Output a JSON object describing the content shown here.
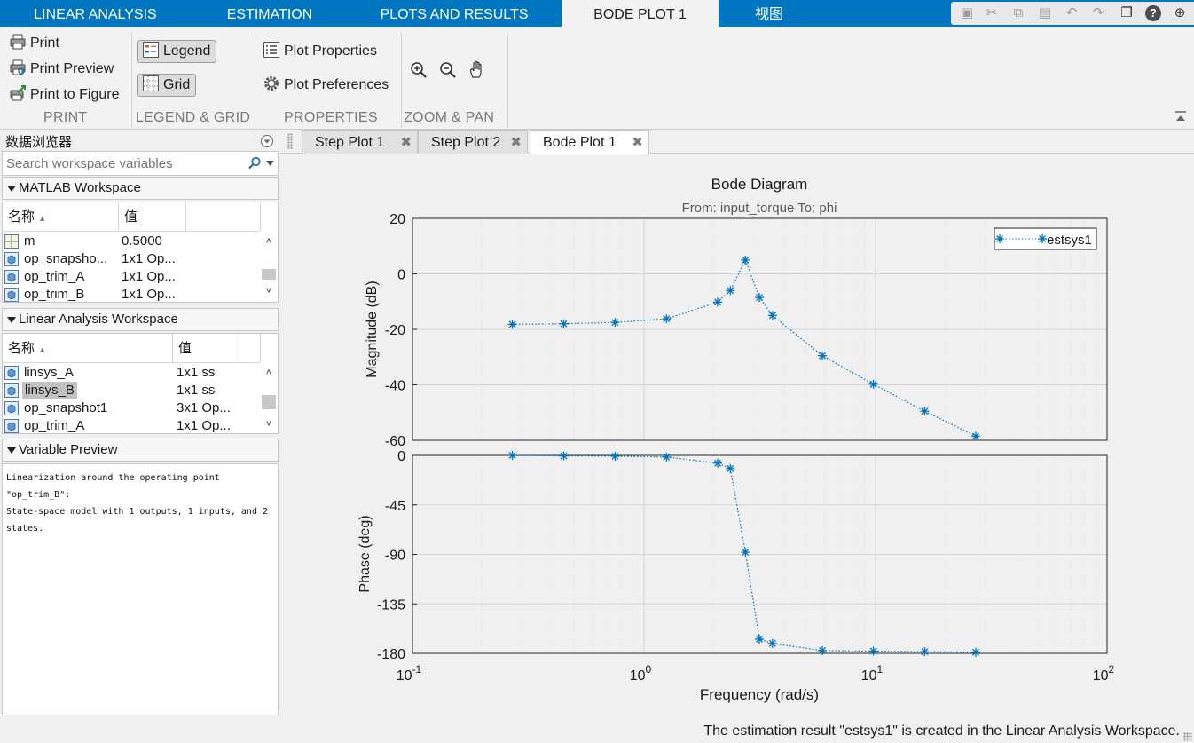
{
  "top_tabs": [
    "LINEAR ANALYSIS",
    "ESTIMATION",
    "PLOTS AND RESULTS",
    "BODE PLOT 1",
    "视图"
  ],
  "ribbon": {
    "print": {
      "print_label": "Print",
      "print_preview_label": "Print Preview",
      "print_to_figure_label": "Print to Figure",
      "section_label": "PRINT"
    },
    "legend_grid": {
      "legend_label": "Legend",
      "grid_label": "Grid",
      "section_label": "LEGEND & GRID"
    },
    "properties": {
      "plot_properties_label": "Plot Properties",
      "plot_preferences_label": "Plot Preferences",
      "section_label": "PROPERTIES"
    },
    "zoom_pan": {
      "section_label": "ZOOM & PAN"
    }
  },
  "data_browser": {
    "title": "数据浏览器",
    "search_placeholder": "Search workspace variables",
    "matlab_workspace": {
      "title": "MATLAB Workspace",
      "col_name": "名称",
      "col_value": "值",
      "rows": [
        {
          "name": "m",
          "value": "0.5000",
          "icon": "matrix-icon"
        },
        {
          "name": "op_snapsho...",
          "value": "1x1 Op...",
          "icon": "object-icon"
        },
        {
          "name": "op_trim_A",
          "value": "1x1 Op...",
          "icon": "object-icon"
        },
        {
          "name": "op_trim_B",
          "value": "1x1 Op...",
          "icon": "object-icon"
        }
      ]
    },
    "linear_workspace": {
      "title": "Linear Analysis Workspace",
      "col_name": "名称",
      "col_value": "值",
      "rows": [
        {
          "name": "linsys_A",
          "value": "1x1 ss",
          "icon": "object-icon"
        },
        {
          "name": "linsys_B",
          "value": "1x1 ss",
          "icon": "object-icon",
          "selected": true
        },
        {
          "name": "op_snapshot1",
          "value": "3x1 Op...",
          "icon": "object-icon"
        },
        {
          "name": "op_trim_A",
          "value": "1x1 Op...",
          "icon": "object-icon"
        }
      ]
    },
    "variable_preview": {
      "title": "Variable Preview",
      "lines": [
        "Linearization around the operating point",
        "\"op_trim_B\":",
        "State-space model with 1 outputs, 1 inputs, and 2",
        "states."
      ]
    }
  },
  "doc_tabs": [
    "Step Plot 1",
    "Step Plot 2",
    "Bode Plot 1"
  ],
  "chart_data": {
    "type": "line",
    "title": "Bode Diagram",
    "subtitle": "From: input_torque  To: phi",
    "xlabel": "Frequency  (rad/s)",
    "x_scale": "log",
    "xlim": [
      0.1,
      100
    ],
    "x_tick_labels": [
      "10^-1",
      "10^0",
      "10^1",
      "10^2"
    ],
    "legend": [
      "estsys1"
    ],
    "legend_position": "top-right",
    "series_color": "#0072bd",
    "marker": "*",
    "line_style": "dotted",
    "grid": true,
    "x": [
      0.27,
      0.45,
      0.75,
      1.25,
      2.08,
      2.36,
      2.74,
      3.15,
      3.59,
      5.89,
      9.79,
      16.3,
      27.1
    ],
    "magnitude": {
      "ylabel": "Magnitude (dB)",
      "ylim": [
        -60,
        20
      ],
      "yticks": [
        20,
        0,
        -20,
        -40,
        -60
      ],
      "values": [
        -18.2,
        -18.0,
        -17.5,
        -16.2,
        -10.2,
        -6.0,
        5.0,
        -8.5,
        -15.0,
        -29.5,
        -39.8,
        -49.5,
        -58.5
      ]
    },
    "phase": {
      "ylabel": "Phase (deg)",
      "ylim": [
        -180,
        0
      ],
      "yticks": [
        0,
        -45,
        -90,
        -135,
        -180
      ],
      "values": [
        0,
        -0.5,
        -0.8,
        -1.5,
        -7.0,
        -12.0,
        -88.0,
        -167.0,
        -171.0,
        -177.5,
        -178.0,
        -178.5,
        -179.0
      ]
    }
  },
  "status_text": "The estimation result \"estsys1\" is created in the Linear Analysis Workspace."
}
